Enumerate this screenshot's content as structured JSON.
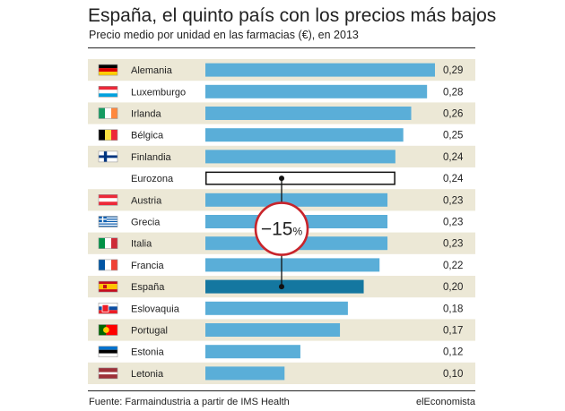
{
  "title": "España, el quinto país con los precios más bajos",
  "subtitle": "Precio medio por unidad en las farmacias (€), en 2013",
  "footer": {
    "source": "Fuente: Farmaindustria a partir de IMS Health",
    "brand": "elEconomista"
  },
  "colors": {
    "bar": "#5aaed8",
    "highlight": "#1477a0",
    "band": "#ece8d6",
    "callout": "#c8242b"
  },
  "chart_data": {
    "type": "bar",
    "orientation": "horizontal",
    "categories": [
      "Alemania",
      "Luxemburgo",
      "Irlanda",
      "Bélgica",
      "Finlandia",
      "Eurozona",
      "Austria",
      "Grecia",
      "Italia",
      "Francia",
      "España",
      "Eslovaquia",
      "Portugal",
      "Estonia",
      "Letonia"
    ],
    "values": [
      0.29,
      0.28,
      0.26,
      0.25,
      0.24,
      0.24,
      0.23,
      0.23,
      0.23,
      0.22,
      0.2,
      0.18,
      0.17,
      0.12,
      0.1
    ],
    "value_labels": [
      "0,29",
      "0,28",
      "0,26",
      "0,25",
      "0,24",
      "0,24",
      "0,23",
      "0,23",
      "0,23",
      "0,22",
      "0,20",
      "0,18",
      "0,17",
      "0,12",
      "0,10"
    ],
    "flags": [
      "germany-flag",
      "luxembourg-flag",
      "ireland-flag",
      "belgium-flag",
      "finland-flag",
      "",
      "austria-flag",
      "greece-flag",
      "italy-flag",
      "france-flag",
      "spain-flag",
      "slovakia-flag",
      "portugal-flag",
      "estonia-flag",
      "latvia-flag"
    ],
    "outlined_category": "Eurozona",
    "highlighted_category": "España",
    "xlim": [
      0,
      0.29
    ],
    "annotation": {
      "from": "Eurozona",
      "to": "España",
      "value": "−15",
      "unit": "%"
    }
  }
}
